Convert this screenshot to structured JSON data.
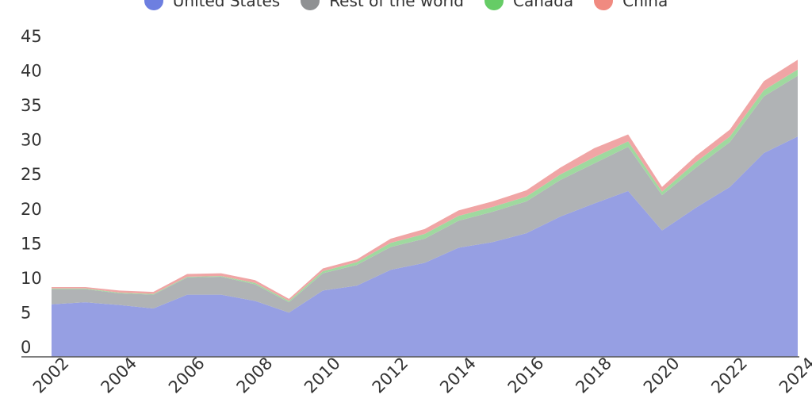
{
  "chart_data": {
    "type": "area",
    "stacked": true,
    "title": "",
    "xlabel": "",
    "ylabel": "",
    "x": [
      2002,
      2003,
      2004,
      2005,
      2006,
      2007,
      2008,
      2009,
      2010,
      2011,
      2012,
      2013,
      2014,
      2015,
      2016,
      2017,
      2018,
      2019,
      2020,
      2021,
      2022,
      2023,
      2024
    ],
    "x_tick_labels": [
      "2002",
      "2004",
      "2006",
      "2008",
      "2010",
      "2012",
      "2014",
      "2016",
      "2018",
      "2020",
      "2022",
      "2024"
    ],
    "y_tick_labels": [
      "0",
      "5",
      "10",
      "15",
      "20",
      "25",
      "30",
      "35",
      "40",
      "45"
    ],
    "ylim": [
      0,
      45
    ],
    "grid": false,
    "legend_position": "top-center",
    "series": [
      {
        "name": "United States",
        "color": "#6d7fe0",
        "fill": "#969fe3",
        "values": [
          7.6,
          7.9,
          7.5,
          7.0,
          9.0,
          9.0,
          8.1,
          6.4,
          9.6,
          10.3,
          12.6,
          13.6,
          15.8,
          16.6,
          17.9,
          20.3,
          22.2,
          24.0,
          18.3,
          21.6,
          24.6,
          29.5,
          31.9
        ]
      },
      {
        "name": "Rest of the world",
        "color": "#8f9193",
        "fill": "#b0b3b5",
        "values": [
          2.2,
          1.9,
          1.7,
          2.0,
          2.5,
          2.6,
          2.4,
          1.5,
          2.5,
          3.0,
          3.3,
          3.5,
          3.9,
          4.4,
          4.6,
          5.3,
          5.8,
          6.4,
          5.1,
          5.8,
          6.5,
          8.2,
          8.8
        ]
      },
      {
        "name": "Canada",
        "color": "#66cc66",
        "fill": "#9fd99f",
        "values": [
          0.1,
          0.1,
          0.1,
          0.1,
          0.1,
          0.1,
          0.2,
          0.2,
          0.3,
          0.4,
          0.6,
          0.7,
          0.7,
          0.7,
          0.7,
          0.8,
          0.9,
          0.8,
          0.5,
          0.8,
          0.8,
          0.9,
          0.9
        ]
      },
      {
        "name": "China",
        "color": "#f08a80",
        "fill": "#f0a5a5",
        "values": [
          0.2,
          0.2,
          0.3,
          0.3,
          0.4,
          0.4,
          0.4,
          0.3,
          0.4,
          0.4,
          0.6,
          0.7,
          0.8,
          0.8,
          0.9,
          1.0,
          1.3,
          1.0,
          0.7,
          0.9,
          1.0,
          1.3,
          1.4
        ]
      }
    ]
  }
}
